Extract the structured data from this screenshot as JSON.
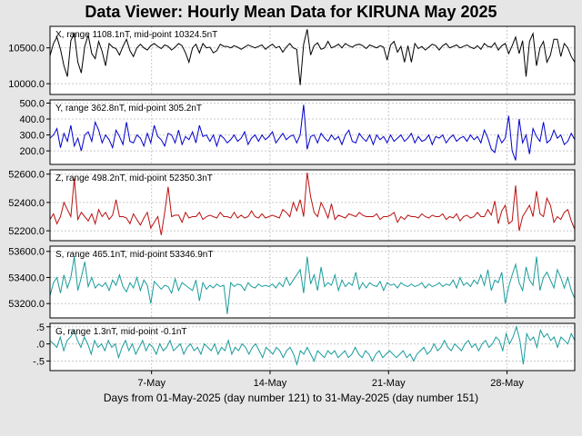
{
  "title": "Data Viewer:  Hourly Mean Data for KIRUNA May 2025",
  "chart_data": {
    "type": "line",
    "title": "Data Viewer:  Hourly Mean Data for KIRUNA May 2025",
    "xlabel": "Days from 01-May-2025 (day number 121) to 31-May-2025 (day number 151)",
    "x_range": [
      1,
      32
    ],
    "x_ticks": [
      {
        "day": 7,
        "label": "7-May"
      },
      {
        "day": 14,
        "label": "14-May"
      },
      {
        "day": 21,
        "label": "21-May"
      },
      {
        "day": 28,
        "label": "28-May"
      }
    ],
    "grid": true,
    "panels": [
      {
        "id": "X",
        "label": "X, range 1108.1nT, mid-point 10324.5nT",
        "color": "#000000",
        "ylim": [
          9850,
          10800
        ],
        "yticks": [
          10000,
          10500
        ],
        "ytick_labels": [
          "10000.0",
          "10500.0"
        ],
        "values": [
          10390,
          10560,
          10650,
          10480,
          10250,
          10100,
          10600,
          10700,
          10300,
          10150,
          10520,
          10680,
          10420,
          10350,
          10590,
          10450,
          10250,
          10560,
          10510,
          10490,
          10400,
          10520,
          10620,
          10460,
          10380,
          10500,
          10550,
          10500,
          10470,
          10530,
          10560,
          10520,
          10490,
          10540,
          10520,
          10470,
          10510,
          10560,
          10530,
          10430,
          10300,
          10500,
          10550,
          10430,
          10560,
          10500,
          10510,
          10430,
          10460,
          10550,
          10520,
          10520,
          10500,
          10530,
          10510,
          10480,
          10510,
          10540,
          10520,
          10500,
          10520,
          10540,
          10480,
          10520,
          10550,
          10500,
          10520,
          10440,
          10510,
          10560,
          10500,
          10480,
          9980,
          10550,
          10760,
          10400,
          10530,
          10570,
          10480,
          10500,
          10590,
          10500,
          10520,
          10550,
          10500,
          10560,
          10530,
          10510,
          10540,
          10550,
          10530,
          10490,
          10540,
          10520,
          10500,
          10530,
          10510,
          10330,
          10540,
          10590,
          10440,
          10520,
          10300,
          10530,
          10300,
          10560,
          10490,
          10520,
          10470,
          10510,
          10550,
          10530,
          10470,
          10530,
          10560,
          10500,
          10520,
          10540,
          10500,
          10520,
          10540,
          10510,
          10490,
          10530,
          10480,
          10560,
          10520,
          10510,
          10570,
          10470,
          10530,
          10560,
          10420,
          10530,
          10650,
          10420,
          10600,
          10100,
          10590,
          10700,
          10250,
          10500,
          10590,
          10300,
          10400,
          10620,
          10620,
          10380,
          10560,
          10500,
          10380,
          10300
        ]
      },
      {
        "id": "Y",
        "label": "Y, range 362.8nT, mid-point 305.2nT",
        "color": "#0000cc",
        "ylim": [
          115,
          520
        ],
        "yticks": [
          200,
          300,
          400,
          500
        ],
        "ytick_labels": [
          "200.0",
          "300.0",
          "400.0",
          "500.0"
        ],
        "values": [
          280,
          300,
          340,
          220,
          310,
          260,
          360,
          230,
          280,
          200,
          300,
          320,
          260,
          380,
          330,
          250,
          300,
          270,
          220,
          330,
          290,
          240,
          380,
          260,
          250,
          300,
          280,
          230,
          310,
          250,
          360,
          290,
          270,
          230,
          310,
          300,
          250,
          330,
          240,
          290,
          270,
          320,
          250,
          360,
          290,
          300,
          260,
          300,
          230,
          300,
          280,
          250,
          270,
          300,
          260,
          280,
          320,
          240,
          280,
          300,
          260,
          300,
          270,
          290,
          320,
          250,
          280,
          310,
          270,
          290,
          300,
          250,
          300,
          490,
          210,
          290,
          300,
          250,
          310,
          280,
          260,
          300,
          270,
          290,
          240,
          300,
          330,
          260,
          250,
          310,
          280,
          260,
          300,
          240,
          300,
          270,
          290,
          250,
          300,
          260,
          280,
          300,
          260,
          280,
          310,
          250,
          290,
          260,
          270,
          300,
          240,
          290,
          280,
          300,
          250,
          280,
          300,
          260,
          280,
          290,
          260,
          300,
          270,
          290,
          250,
          330,
          280,
          210,
          190,
          300,
          250,
          280,
          420,
          200,
          140,
          400,
          250,
          300,
          180,
          340,
          290,
          260,
          380,
          250,
          270,
          330,
          280,
          300,
          240,
          260,
          310,
          270
        ]
      },
      {
        "id": "Z",
        "label": "Z, range 498.2nT, mid-point 52350.3nT",
        "color": "#bb1111",
        "ylim": [
          52130,
          52630
        ],
        "yticks": [
          52200,
          52400,
          52600
        ],
        "ytick_labels": [
          "52200.0",
          "52400.0",
          "52600.0"
        ],
        "values": [
          52280,
          52320,
          52250,
          52300,
          52400,
          52350,
          52300,
          52570,
          52280,
          52330,
          52300,
          52270,
          52320,
          52250,
          52350,
          52300,
          52330,
          52280,
          52310,
          52420,
          52300,
          52300,
          52290,
          52250,
          52320,
          52280,
          52240,
          52290,
          52330,
          52220,
          52260,
          52300,
          52170,
          52330,
          52510,
          52300,
          52310,
          52310,
          52260,
          52330,
          52290,
          52300,
          52300,
          52330,
          52280,
          52300,
          52310,
          52300,
          52290,
          52330,
          52300,
          52300,
          52290,
          52330,
          52290,
          52310,
          52290,
          52300,
          52340,
          52300,
          52290,
          52320,
          52290,
          52300,
          52310,
          52300,
          52290,
          52350,
          52330,
          52300,
          52400,
          52340,
          52420,
          52300,
          52610,
          52440,
          52330,
          52300,
          52400,
          52350,
          52290,
          52390,
          52280,
          52310,
          52300,
          52290,
          52320,
          52310,
          52300,
          52330,
          52310,
          52300,
          52300,
          52300,
          52320,
          52280,
          52300,
          52300,
          52310,
          52330,
          52260,
          52300,
          52280,
          52310,
          52300,
          52300,
          52290,
          52320,
          52300,
          52290,
          52310,
          52300,
          52300,
          52320,
          52280,
          52300,
          52290,
          52320,
          52270,
          52300,
          52310,
          52290,
          52300,
          52330,
          52300,
          52300,
          52350,
          52310,
          52410,
          52250,
          52340,
          52380,
          52250,
          52270,
          52520,
          52200,
          52300,
          52340,
          52380,
          52300,
          52480,
          52320,
          52300,
          52430,
          52380,
          52260,
          52300,
          52280,
          52330,
          52350,
          52270,
          52210
        ]
      },
      {
        "id": "S",
        "label": "S, range 465.1nT, mid-point 53346.9nT",
        "color": "#1a9c9c",
        "ylim": [
          53090,
          53640
        ],
        "yticks": [
          53200,
          53400,
          53600
        ],
        "ytick_labels": [
          "53200.0",
          "53400.0",
          "53600.0"
        ],
        "values": [
          53260,
          53360,
          53400,
          53280,
          53420,
          53320,
          53400,
          53560,
          53300,
          53400,
          53520,
          53330,
          53400,
          53320,
          53350,
          53330,
          53360,
          53300,
          53380,
          53340,
          53420,
          53330,
          53290,
          53360,
          53320,
          53400,
          53300,
          53380,
          53340,
          53200,
          53370,
          53340,
          53310,
          53340,
          53330,
          53280,
          53390,
          53300,
          53360,
          53340,
          53320,
          53300,
          53380,
          53220,
          53360,
          53310,
          53340,
          53320,
          53350,
          53330,
          53340,
          53120,
          53360,
          53330,
          53350,
          53340,
          53300,
          53360,
          53330,
          53320,
          53350,
          53330,
          53340,
          53330,
          53350,
          53320,
          53360,
          53330,
          53400,
          53340,
          53380,
          53420,
          53460,
          53280,
          53560,
          53350,
          53420,
          53300,
          53480,
          53330,
          53360,
          53340,
          53420,
          53300,
          53380,
          53330,
          53360,
          53340,
          53440,
          53310,
          53360,
          53320,
          53360,
          53340,
          53330,
          53370,
          53300,
          53360,
          53340,
          53350,
          53320,
          53360,
          53340,
          53330,
          53350,
          53330,
          53340,
          53360,
          53320,
          53350,
          53330,
          53340,
          53360,
          53330,
          53350,
          53340,
          53380,
          53320,
          53400,
          53340,
          53360,
          53330,
          53380,
          53350,
          53420,
          53340,
          53460,
          53300,
          53380,
          53360,
          53440,
          53200,
          53330,
          53420,
          53500,
          53360,
          53300,
          53480,
          53380,
          53340,
          53560,
          53300,
          53400,
          53440,
          53380,
          53320,
          53460,
          53400,
          53320,
          53400,
          53300,
          53240
        ]
      },
      {
        "id": "G",
        "label": "G, range 1.3nT, mid-point -0.1nT",
        "color": "#1a9c9c",
        "ylim": [
          -0.78,
          0.6
        ],
        "yticks": [
          -0.5,
          0,
          0.5
        ],
        "ytick_labels": [
          "-.5",
          ".0",
          ".5"
        ],
        "values": [
          0.1,
          0.0,
          -0.1,
          0.2,
          -0.2,
          0.1,
          0.2,
          0.4,
          0.1,
          -0.1,
          0.2,
          0.0,
          -0.3,
          0.1,
          -0.1,
          0.0,
          -0.2,
          0.1,
          -0.1,
          0.0,
          -0.4,
          -0.1,
          0.1,
          -0.2,
          0.0,
          -0.3,
          -0.1,
          0.1,
          -0.2,
          0.0,
          -0.1,
          -0.3,
          0.0,
          -0.2,
          -0.1,
          0.1,
          -0.2,
          -0.1,
          0.0,
          -0.3,
          -0.1,
          0.0,
          -0.2,
          -0.1,
          -0.3,
          0.0,
          -0.1,
          -0.2,
          0.0,
          -0.3,
          -0.1,
          -0.2,
          0.1,
          -0.3,
          -0.1,
          -0.2,
          0.0,
          -0.1,
          -0.3,
          -0.1,
          0.0,
          -0.2,
          -0.4,
          -0.1,
          -0.2,
          -0.3,
          -0.1,
          -0.2,
          -0.4,
          -0.2,
          -0.1,
          -0.3,
          -0.6,
          -0.2,
          -0.3,
          -0.1,
          -0.3,
          -0.5,
          -0.2,
          -0.3,
          -0.4,
          -0.2,
          -0.3,
          -0.2,
          -0.4,
          -0.3,
          -0.2,
          -0.4,
          -0.3,
          -0.1,
          -0.3,
          -0.4,
          -0.2,
          -0.3,
          -0.5,
          -0.3,
          -0.2,
          -0.4,
          -0.3,
          -0.2,
          -0.3,
          -0.4,
          -0.3,
          -0.2,
          -0.4,
          -0.3,
          -0.5,
          -0.3,
          -0.2,
          -0.1,
          -0.3,
          -0.2,
          0.0,
          -0.2,
          -0.1,
          0.1,
          -0.1,
          -0.2,
          0.0,
          -0.1,
          -0.2,
          0.0,
          0.1,
          -0.1,
          0.0,
          -0.2,
          0.0,
          0.1,
          -0.1,
          0.0,
          0.2,
          0.1,
          -0.2,
          0.3,
          0.0,
          0.2,
          0.5,
          0.1,
          -0.6,
          0.3,
          0.1,
          0.2,
          -0.1,
          0.4,
          0.2,
          0.3,
          0.1,
          0.2,
          -0.1,
          0.2,
          0.1,
          0.0,
          0.3,
          0.1
        ]
      }
    ]
  }
}
